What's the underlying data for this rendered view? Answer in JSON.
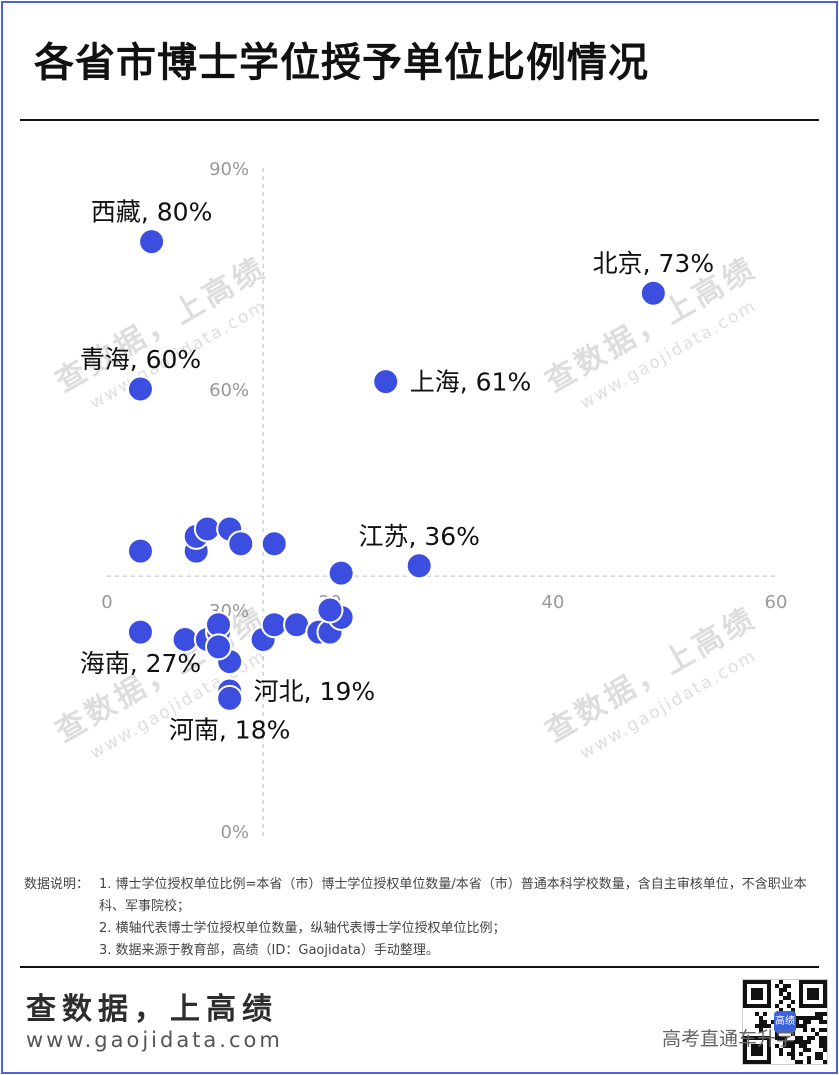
{
  "title": "各省市博士学位授予单位比例情况",
  "chart_data": {
    "type": "scatter",
    "title": "各省市博士学位授予单位比例情况",
    "xlabel": "",
    "ylabel": "",
    "xlim": [
      0,
      60
    ],
    "ylim": [
      0,
      0.9
    ],
    "x_ticks": [
      0,
      20,
      40,
      60
    ],
    "x_tick_labels": [
      "0",
      "20",
      "40",
      "60"
    ],
    "y_ticks": [
      0,
      0.3,
      0.6,
      0.9
    ],
    "y_tick_labels": [
      "0%",
      "30%",
      "60%",
      "90%"
    ],
    "reference_lines": {
      "x": 14,
      "y": 0.346
    },
    "grid": false,
    "point_color": "#3b4ee0",
    "points": [
      {
        "x": 4,
        "y": 0.8,
        "label": "西藏, 80%",
        "label_pos": "above"
      },
      {
        "x": 49,
        "y": 0.73,
        "label": "北京, 73%",
        "label_pos": "above"
      },
      {
        "x": 25,
        "y": 0.61,
        "label": "上海, 61%",
        "label_pos": "right"
      },
      {
        "x": 3,
        "y": 0.6,
        "label": "青海, 60%",
        "label_pos": "above"
      },
      {
        "x": 28,
        "y": 0.36,
        "label": "江苏, 36%",
        "label_pos": "above"
      },
      {
        "x": 3,
        "y": 0.27,
        "label": "海南, 27%",
        "label_pos": "below"
      },
      {
        "x": 11,
        "y": 0.19,
        "label": "河北, 19%",
        "label_pos": "right"
      },
      {
        "x": 11,
        "y": 0.18,
        "label": "河南, 18%",
        "label_pos": "below"
      },
      {
        "x": 3,
        "y": 0.38
      },
      {
        "x": 8,
        "y": 0.38
      },
      {
        "x": 8,
        "y": 0.4
      },
      {
        "x": 9,
        "y": 0.41
      },
      {
        "x": 11,
        "y": 0.41
      },
      {
        "x": 12,
        "y": 0.39
      },
      {
        "x": 15,
        "y": 0.39
      },
      {
        "x": 21,
        "y": 0.35
      },
      {
        "x": 7,
        "y": 0.26
      },
      {
        "x": 9,
        "y": 0.26
      },
      {
        "x": 10,
        "y": 0.27
      },
      {
        "x": 10,
        "y": 0.28
      },
      {
        "x": 11,
        "y": 0.23
      },
      {
        "x": 10,
        "y": 0.25
      },
      {
        "x": 14,
        "y": 0.26
      },
      {
        "x": 15,
        "y": 0.28
      },
      {
        "x": 17,
        "y": 0.28
      },
      {
        "x": 19,
        "y": 0.27
      },
      {
        "x": 20,
        "y": 0.27
      },
      {
        "x": 21,
        "y": 0.29
      },
      {
        "x": 20,
        "y": 0.3
      }
    ]
  },
  "watermarks": {
    "text_cn": "查数据，上高绩",
    "text_url": "www.gaojidata.com"
  },
  "notes": {
    "lead": "数据说明：",
    "items": [
      "1. 博士学位授权单位比例=本省（市）博士学位授权单位数量/本省（市）普通本科学校数量，含自主审核单位，不含职业本科、军事院校；",
      "2. 横轴代表博士学位授权单位数量，纵轴代表博士学位授权单位比例；",
      "3. 数据来源于教育部，高绩（ID：Gaojidata）手动整理。"
    ]
  },
  "footer": {
    "slogan": "查数据，上高绩",
    "site": "www.gaojidata.com",
    "qr_badge": "高绩",
    "account": "高考直通车升学"
  }
}
